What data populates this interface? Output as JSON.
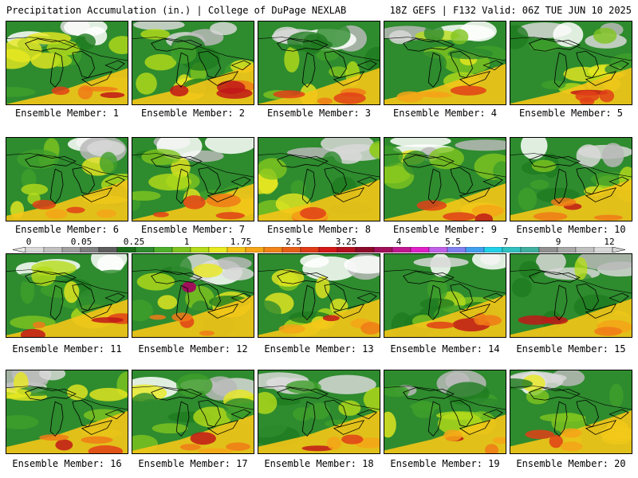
{
  "header": {
    "title": "Precipitation Accumulation (in.) | College of DuPage NEXLAB",
    "valid": "18Z GEFS | F132 Valid: 06Z TUE JUN 10 2025"
  },
  "panels": [
    {
      "label": "Ensemble Member: 1"
    },
    {
      "label": "Ensemble Member: 2"
    },
    {
      "label": "Ensemble Member: 3"
    },
    {
      "label": "Ensemble Member: 4"
    },
    {
      "label": "Ensemble Member: 5"
    },
    {
      "label": "Ensemble Member: 6"
    },
    {
      "label": "Ensemble Member: 7"
    },
    {
      "label": "Ensemble Member: 8"
    },
    {
      "label": "Ensemble Member: 9"
    },
    {
      "label": "Ensemble Member: 10"
    },
    {
      "label": "Ensemble Member: 11"
    },
    {
      "label": "Ensemble Member: 12"
    },
    {
      "label": "Ensemble Member: 13"
    },
    {
      "label": "Ensemble Member: 14"
    },
    {
      "label": "Ensemble Member: 15"
    },
    {
      "label": "Ensemble Member: 16"
    },
    {
      "label": "Ensemble Member: 17"
    },
    {
      "label": "Ensemble Member: 18"
    },
    {
      "label": "Ensemble Member: 19"
    },
    {
      "label": "Ensemble Member: 20"
    }
  ],
  "colorbar": {
    "labels": [
      "0",
      "0.05",
      "0.25",
      "1",
      "1.75",
      "2.5",
      "3.25",
      "4",
      "5.5",
      "7",
      "9",
      "12"
    ],
    "colors": [
      "#d9d9d9",
      "#c0c0c0",
      "#a0a0a0",
      "#7f7f7f",
      "#5e5e5e",
      "#1a6b1a",
      "#2e8b2e",
      "#4caf2a",
      "#7fc41f",
      "#b5dc1a",
      "#e8e820",
      "#f5c518",
      "#f5a518",
      "#f08418",
      "#e86018",
      "#e03c18",
      "#d41818",
      "#b41020",
      "#8c0a2a",
      "#a0105a",
      "#c01890",
      "#e020c8",
      "#c060e8",
      "#8080f0",
      "#40a0f0",
      "#20d0e8",
      "#30c0c0",
      "#40b0a0",
      "#909090",
      "#a8a8a8",
      "#c0c0c0",
      "#d8d8d8"
    ]
  }
}
